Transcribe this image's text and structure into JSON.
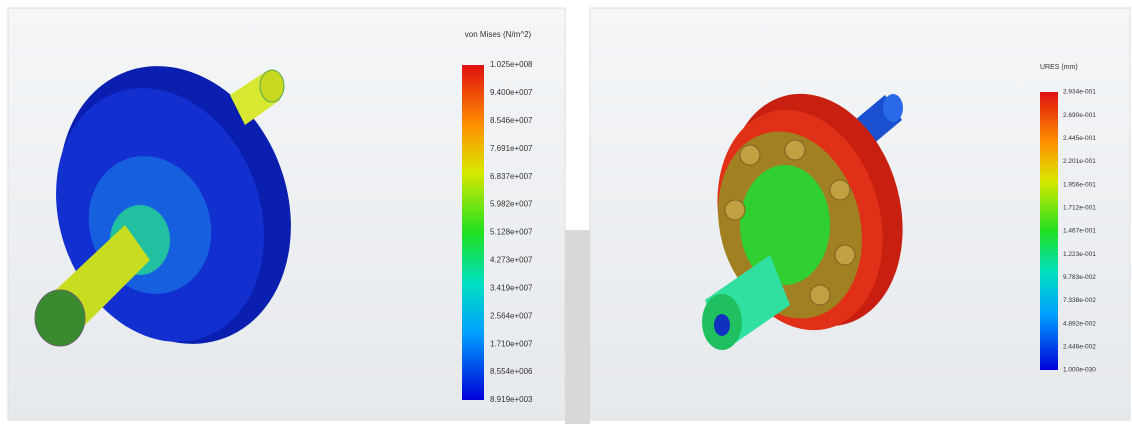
{
  "panels": [
    {
      "legend_title": "von Mises (N/m^2)",
      "legend_labels": [
        "1.025e+008",
        "9.400e+007",
        "8.546e+007",
        "7.691e+007",
        "6.837e+007",
        "5.982e+007",
        "5.128e+007",
        "4.273e+007",
        "3.419e+007",
        "2.564e+007",
        "1.710e+007",
        "8.554e+006",
        "8.919e+003"
      ]
    },
    {
      "legend_title": "URES (mm)",
      "legend_labels": [
        "2.934e-001",
        "2.690e-001",
        "2.445e-001",
        "2.201e-001",
        "1.956e-001",
        "1.712e-001",
        "1.467e-001",
        "1.223e-001",
        "9.783e-002",
        "7.338e-002",
        "4.892e-002",
        "2.446e-002",
        "1.000e-030"
      ]
    }
  ]
}
